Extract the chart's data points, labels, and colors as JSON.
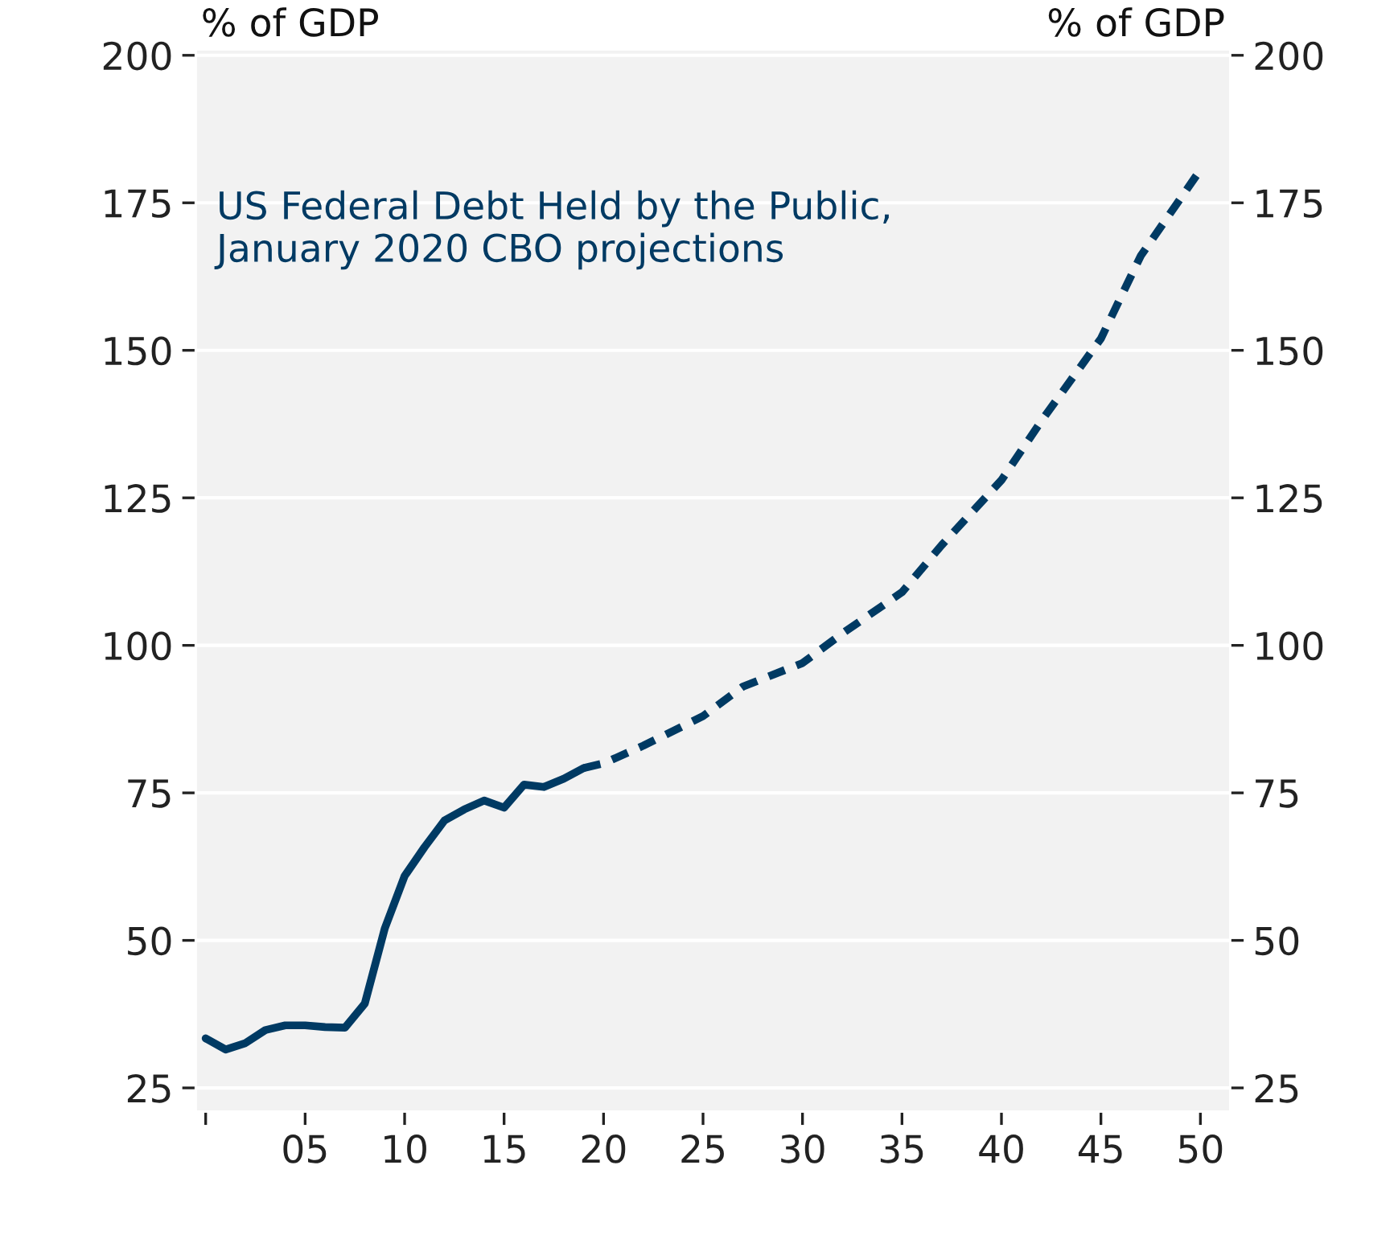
{
  "chart_data": {
    "type": "line",
    "title": "US Federal Debt Held by the Public,\nJanuary 2020 CBO projections",
    "ylabel": "% of GDP",
    "y2label": "% of GDP",
    "series": [
      {
        "color": "#003a63",
        "line_style": "solid",
        "x": [
          2000,
          2001,
          2002,
          2003,
          2004,
          2005,
          2006,
          2007,
          2008,
          2009,
          2010,
          2011,
          2012,
          2013,
          2014,
          2015,
          2016,
          2017,
          2018,
          2019
        ],
        "values": [
          33.4,
          31.5,
          32.6,
          34.8,
          35.6,
          35.6,
          35.3,
          35.2,
          39.3,
          52,
          60.9,
          65.8,
          70.3,
          72.2,
          73.7,
          72.5,
          76.4,
          76,
          77.4,
          79.2
        ]
      },
      {
        "color": "#003a63",
        "line_style": "dashed",
        "x": [
          2019,
          2020,
          2022,
          2025,
          2027,
          2030,
          2032,
          2035,
          2037,
          2040,
          2042,
          2045,
          2047,
          2050
        ],
        "values": [
          79.2,
          80,
          83,
          88,
          93,
          97,
          102,
          109,
          117,
          128,
          138,
          152,
          166,
          180.6
        ]
      }
    ],
    "xlim": [
      1999.5,
      2051.5
    ],
    "xticks": [
      {
        "value": 2000,
        "label": null
      },
      {
        "value": 2005,
        "label": "05"
      },
      {
        "value": 2010,
        "label": "10"
      },
      {
        "value": 2015,
        "label": "15"
      },
      {
        "value": 2020,
        "label": "20"
      },
      {
        "value": 2025,
        "label": "25"
      },
      {
        "value": 2030,
        "label": "30"
      },
      {
        "value": 2035,
        "label": "35"
      },
      {
        "value": 2040,
        "label": "40"
      },
      {
        "value": 2045,
        "label": "45"
      },
      {
        "value": 2050,
        "label": "50"
      }
    ],
    "ylim": [
      21,
      201
    ],
    "yticks": [
      25,
      50,
      75,
      100,
      125,
      150,
      175,
      200
    ],
    "y2lim": [
      21,
      201
    ],
    "y2ticks": [
      25,
      50,
      75,
      100,
      125,
      150,
      175,
      200
    ],
    "grid": "y",
    "legend": false,
    "marker": "none"
  }
}
